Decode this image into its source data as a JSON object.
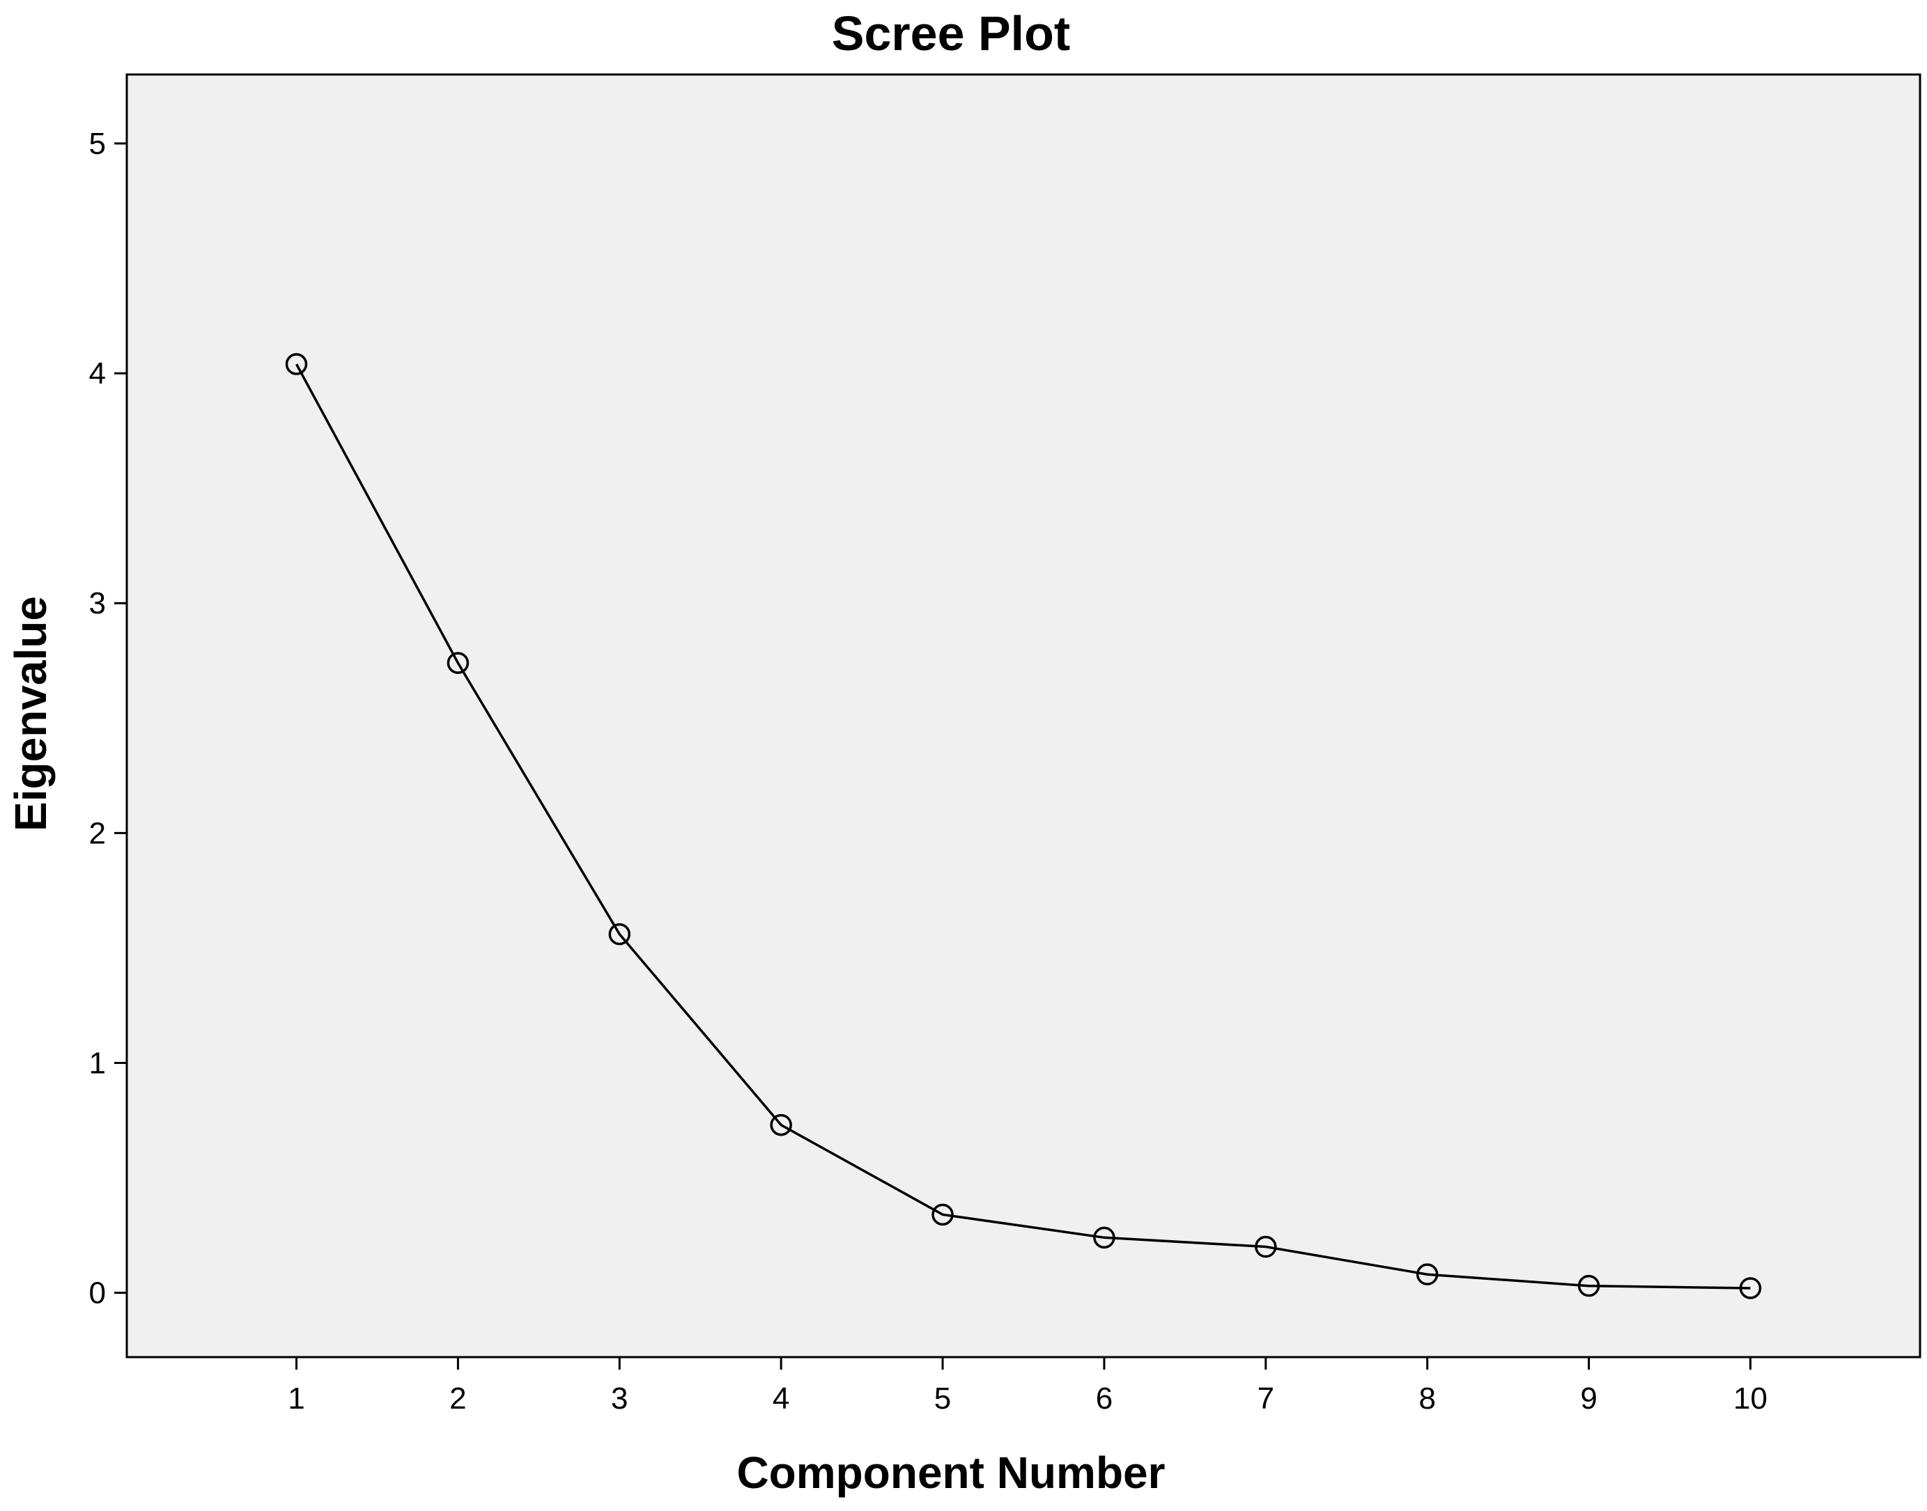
{
  "chart_data": {
    "type": "line",
    "title": "Scree Plot",
    "xlabel": "Component Number",
    "ylabel": "Eigenvalue",
    "x": [
      1,
      2,
      3,
      4,
      5,
      6,
      7,
      8,
      9,
      10
    ],
    "values": [
      4.04,
      2.74,
      1.56,
      0.73,
      0.34,
      0.24,
      0.2,
      0.08,
      0.03,
      0.02
    ],
    "xticks": [
      1,
      2,
      3,
      4,
      5,
      6,
      7,
      8,
      9,
      10
    ],
    "yticks": [
      0,
      1,
      2,
      3,
      4,
      5
    ],
    "xlim": [
      -0.05,
      11.05
    ],
    "ylim": [
      -0.28,
      5.3
    ],
    "grid": false,
    "marker": "open-circle",
    "colors": {
      "line": "#000000",
      "plot_background": "#f0f0f0",
      "page_background": "#ffffff"
    }
  }
}
